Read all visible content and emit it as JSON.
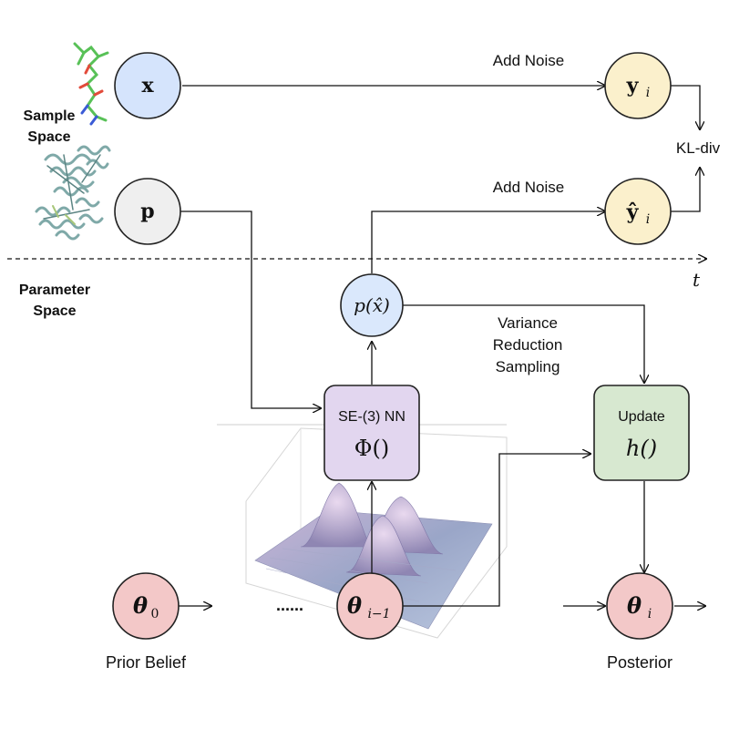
{
  "nodes": {
    "x": {
      "base": "x"
    },
    "p": {
      "base": "p"
    },
    "y_i": {
      "base": "y",
      "sub": "i"
    },
    "yhat_i": {
      "base": "ŷ",
      "sub": "i"
    },
    "p_xhat": {
      "text": "p(x̂)"
    },
    "theta_0": {
      "base": "θ",
      "sub": "0"
    },
    "theta_im1": {
      "base": "θ",
      "sub": "i−1"
    },
    "theta_i": {
      "base": "θ",
      "sub": "i"
    }
  },
  "boxes": {
    "nn": {
      "title": "SE-(3) NN",
      "func": "Φ()"
    },
    "update": {
      "title": "Update",
      "func": "h()"
    }
  },
  "labels": {
    "add_noise_top": "Add Noise",
    "add_noise_mid": "Add Noise",
    "kl_div": "KL-div",
    "sample_space_1": "Sample",
    "sample_space_2": "Space",
    "parameter_space_1": "Parameter",
    "parameter_space_2": "Space",
    "time": "t",
    "vrs_1": "Variance",
    "vrs_2": "Reduction",
    "vrs_3": "Sampling",
    "dots": "......",
    "prior": "Prior Belief",
    "posterior": "Posterior"
  },
  "colors": {
    "blue_node": "#d5e4fc",
    "gray_node": "#efefef",
    "yellow_node": "#fbf0cc",
    "pink_node": "#f3c8c8",
    "light_blue_node": "#dae8fc",
    "nn_box": "#e2d6ef",
    "update_box": "#d7e8d0"
  }
}
